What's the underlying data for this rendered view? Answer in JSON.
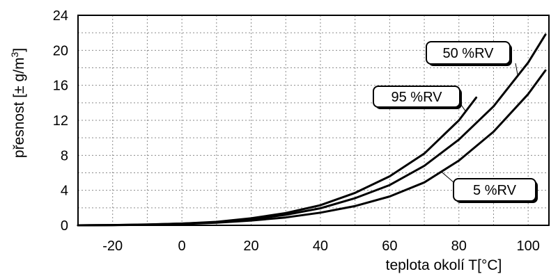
{
  "chart_data": {
    "type": "line",
    "xlabel": "teplota okolí T[°C]",
    "ylabel_main": "přesnost  [± g/m",
    "ylabel_sup": "3",
    "ylabel_close": "]",
    "xlim": [
      -30,
      106
    ],
    "ylim": [
      0,
      24
    ],
    "xticks": [
      -20,
      0,
      20,
      40,
      60,
      80,
      100
    ],
    "yticks": [
      0,
      4,
      8,
      12,
      16,
      20,
      24
    ],
    "x_grid_step": 10,
    "y_grid_step": 2,
    "grid": true,
    "series": [
      {
        "name": "95 %RV",
        "x": [
          -30,
          -20,
          -10,
          0,
          10,
          20,
          30,
          40,
          50,
          60,
          70,
          80,
          85
        ],
        "y": [
          0,
          0.03,
          0.1,
          0.2,
          0.4,
          0.8,
          1.4,
          2.3,
          3.7,
          5.6,
          8.2,
          12.0,
          14.6
        ]
      },
      {
        "name": "50 %RV",
        "x": [
          -30,
          -20,
          -10,
          0,
          10,
          20,
          30,
          40,
          50,
          60,
          70,
          80,
          90,
          100,
          105
        ],
        "y": [
          0,
          0.03,
          0.08,
          0.2,
          0.35,
          0.7,
          1.2,
          1.95,
          3.1,
          4.6,
          6.8,
          9.8,
          13.6,
          18.6,
          21.8
        ]
      },
      {
        "name": "5 %RV",
        "x": [
          -30,
          -20,
          -10,
          0,
          10,
          20,
          30,
          40,
          50,
          60,
          70,
          80,
          90,
          100,
          105
        ],
        "y": [
          0,
          0.02,
          0.06,
          0.15,
          0.3,
          0.55,
          0.9,
          1.45,
          2.2,
          3.3,
          4.9,
          7.4,
          10.7,
          15.0,
          17.7
        ]
      }
    ],
    "callouts": [
      {
        "series": "95 %RV",
        "label": "95 %RV",
        "anchor_x": 82,
        "anchor_y": 13.0
      },
      {
        "series": "50 %RV",
        "label": "50 %RV",
        "anchor_x": 97,
        "anchor_y": 17.1
      },
      {
        "series": "5 %RV",
        "label": "5 %RV",
        "anchor_x": 75,
        "anchor_y": 6.1
      }
    ]
  }
}
